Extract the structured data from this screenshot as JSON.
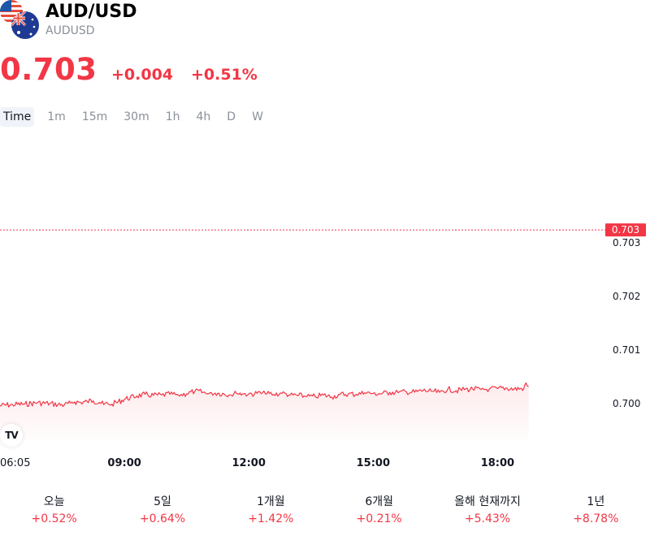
{
  "header": {
    "title": "AUD/USD",
    "subtitle": "AUDUSD",
    "price": "0.703",
    "change_abs": "+0.004",
    "change_pct": "+0.51%"
  },
  "timeframes": [
    "Time",
    "1m",
    "15m",
    "30m",
    "1h",
    "4h",
    "D",
    "W"
  ],
  "active_timeframe": "Time",
  "colors": {
    "accent": "#f23645",
    "muted": "#8a8f98",
    "text": "#131722"
  },
  "chart_data": {
    "type": "area",
    "x_ticks": [
      "06:05",
      "09:00",
      "12:00",
      "15:00",
      "18:00"
    ],
    "y_ticks": [
      0.7,
      0.701,
      0.702,
      0.703
    ],
    "ylim": [
      0.6993,
      0.7045
    ],
    "xlim_hours": [
      6.0,
      20.5
    ],
    "last_price_label": "0.703",
    "last_price": 0.70324,
    "grid": false,
    "series": [
      {
        "x": [
          6.0,
          6.3,
          6.6,
          6.9,
          7.2,
          7.4,
          7.55,
          7.7,
          7.8,
          7.95,
          8.1,
          8.25,
          8.4,
          8.5,
          8.6,
          8.7,
          8.85,
          9.0,
          9.3,
          9.5,
          9.7,
          9.9,
          10.1,
          10.3,
          10.5,
          10.7,
          10.9,
          11.0,
          11.1,
          11.25,
          11.4,
          11.55,
          11.7,
          11.85,
          12.0,
          12.2,
          12.4,
          12.6,
          12.8,
          13.0,
          13.2,
          13.4,
          13.6,
          13.8,
          14.0,
          14.2,
          14.4,
          14.6,
          14.8,
          15.0,
          15.2,
          15.4,
          15.6,
          15.8,
          16.0,
          16.2,
          16.4,
          16.6,
          16.8,
          17.0,
          17.2,
          17.4,
          17.6,
          17.8,
          18.0,
          18.2,
          18.4,
          18.55,
          18.63,
          18.66,
          18.7,
          18.75
        ],
        "values": [
          6.9996,
          6.9998,
          6.9999,
          7.0001,
          7.0,
          6.9998,
          6.9997,
          7.0001,
          7.0003,
          7.0002,
          7.0004,
          7.0005,
          7.0002,
          6.9998,
          7.0,
          6.9999,
          7.0003,
          7.0008,
          7.0014,
          7.0017,
          7.0015,
          7.0016,
          7.0017,
          7.0016,
          7.0018,
          7.0023,
          7.0021,
          7.0018,
          7.002,
          7.0019,
          7.0018,
          7.0016,
          7.0019,
          7.0018,
          7.0018,
          7.0019,
          7.0018,
          7.0017,
          7.0019,
          7.0016,
          7.0015,
          7.0013,
          7.0013,
          7.0016,
          7.0012,
          7.0017,
          7.0018,
          7.0017,
          7.002,
          7.0019,
          7.0018,
          7.0021,
          7.002,
          7.0022,
          7.0021,
          7.0024,
          7.0023,
          7.0021,
          7.0027,
          7.0024,
          7.0026,
          7.0027,
          7.0026,
          7.0027,
          7.0028,
          7.0029,
          7.0027,
          7.0028,
          7.0028,
          7.0035,
          7.0036,
          7.0032
        ]
      }
    ]
  },
  "performance": [
    {
      "label": "오늘",
      "value": "+0.52%"
    },
    {
      "label": "5일",
      "value": "+0.64%"
    },
    {
      "label": "1개월",
      "value": "+1.42%"
    },
    {
      "label": "6개월",
      "value": "+0.21%"
    },
    {
      "label": "올해 현재까지",
      "value": "+5.43%"
    },
    {
      "label": "1년",
      "value": "+8.78%"
    }
  ]
}
